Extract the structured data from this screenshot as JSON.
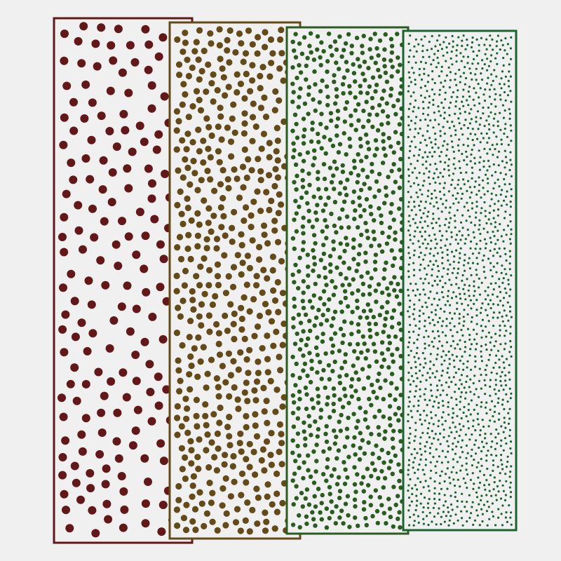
{
  "background": "#f0f0f0",
  "panels": [
    {
      "name": "panel-maroon-sparse",
      "stroke": "#621818",
      "dot": "#621818",
      "fill": "#f0f0f0",
      "density": "sparse"
    },
    {
      "name": "panel-olive-dense",
      "stroke": "#634a18",
      "dot": "#634a18",
      "fill": "#f0f0f0",
      "density": "dense"
    },
    {
      "name": "panel-green-medium",
      "stroke": "#2b5c1f",
      "dot": "#2b5c1f",
      "fill": "#f0f0f0",
      "density": "medium"
    },
    {
      "name": "panel-darkgreen-fine",
      "stroke": "#1b6331",
      "dot": "#1b6331",
      "fill": "#f0f0f0",
      "density": "fine"
    }
  ]
}
